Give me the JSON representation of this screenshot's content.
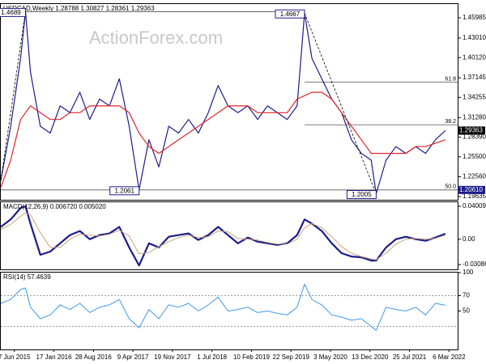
{
  "chart_data": [
    {
      "type": "line",
      "title": "USDCAD,Weekly  1.28788 1.30827 1.28361 1.29363",
      "watermark": "ActionForex.com",
      "x": [
        0,
        8,
        16,
        20,
        24,
        32,
        40,
        48,
        56,
        64,
        72,
        80,
        88,
        96,
        104,
        112,
        120,
        128,
        136,
        144,
        152,
        160,
        168,
        176,
        184,
        192,
        200,
        208,
        216,
        224,
        232,
        240,
        246,
        252,
        260,
        268,
        276,
        284,
        292,
        300,
        304,
        312,
        320,
        328,
        336,
        344,
        352,
        360
      ],
      "xlim": [
        0,
        370
      ],
      "ylim": [
        1.1916,
        1.4801
      ],
      "yticks": [
        1.19635,
        {
          "value": 1.2256,
          "label": "1.22560"
        },
        {
          "value": 1.255,
          "label": "1.25500"
        },
        {
          "value": 1.2839,
          "label": "1.28390"
        },
        {
          "value": 1.3128,
          "label": "1.31280"
        },
        1.34255,
        1.37145,
        {
          "value": 1.4012,
          "label": "1.40120"
        },
        {
          "value": 1.4301,
          "label": "1.43010"
        },
        1.45985
      ],
      "series": [
        {
          "name": "USDCAD",
          "color": "#1c1c8a",
          "values": [
            1.22,
            1.3,
            1.4,
            1.4689,
            1.38,
            1.3,
            1.29,
            1.33,
            1.32,
            1.35,
            1.31,
            1.34,
            1.33,
            1.37,
            1.3,
            1.2061,
            1.28,
            1.24,
            1.3,
            1.29,
            1.31,
            1.29,
            1.32,
            1.36,
            1.33,
            1.32,
            1.33,
            1.31,
            1.33,
            1.32,
            1.31,
            1.33,
            1.4667,
            1.4,
            1.37,
            1.34,
            1.32,
            1.28,
            1.26,
            1.25,
            1.2005,
            1.25,
            1.27,
            1.26,
            1.27,
            1.26,
            1.28,
            1.29363
          ]
        },
        {
          "name": "MA",
          "color": "#e0242a",
          "values": [
            1.21,
            1.25,
            1.31,
            1.32,
            1.33,
            1.32,
            1.31,
            1.31,
            1.32,
            1.32,
            1.33,
            1.33,
            1.33,
            1.33,
            1.32,
            1.29,
            1.27,
            1.26,
            1.27,
            1.28,
            1.29,
            1.3,
            1.31,
            1.32,
            1.33,
            1.33,
            1.33,
            1.32,
            1.32,
            1.32,
            1.32,
            1.34,
            1.345,
            1.35,
            1.35,
            1.34,
            1.32,
            1.3,
            1.28,
            1.26,
            1.26,
            1.26,
            1.26,
            1.26,
            1.27,
            1.27,
            1.275,
            1.28
          ]
        }
      ],
      "annotations": [
        {
          "label": "1.4689",
          "value": 1.4689,
          "x": 20
        },
        {
          "label": "1.4667",
          "value": 1.4667,
          "x": 246
        },
        {
          "label": "1.2061",
          "value": 1.2061,
          "x": 112
        },
        {
          "label": "1.2005",
          "value": 1.2005,
          "x": 304
        }
      ],
      "levels": [
        {
          "label": "61.8",
          "value": 1.3651,
          "x_start": 246
        },
        {
          "label": "38.2",
          "value": 1.3022,
          "x_start": 246
        },
        {
          "label": "50.0",
          "value": 1.2061,
          "x_start": 0
        }
      ],
      "last_price": 1.29363,
      "level_price": {
        "value": 1.2061,
        "label": "1.20610"
      }
    },
    {
      "type": "line",
      "title": "MACD(12,26,9) 0.006720 0.005020",
      "ylim": [
        -0.0367,
        0.045
      ],
      "yticks": [
        0.040094,
        {
          "value": 0,
          "label": "0.00"
        },
        -0.03086
      ],
      "series": [
        {
          "name": "MACD",
          "color": "#1c1c8a",
          "width": 2.2,
          "values": [
            0.015,
            0.024,
            0.038,
            0.04,
            0.019,
            -0.019,
            -0.015,
            -0.005,
            0.005,
            0.01,
            0,
            0.005,
            0.007,
            0.015,
            -0.01,
            -0.032,
            -0.005,
            -0.01,
            0.003,
            0.005,
            0.007,
            -0.001,
            0.005,
            0.015,
            0.005,
            -0.005,
            0.002,
            -0.003,
            -0.005,
            -0.007,
            -0.005,
            0.005,
            0.024,
            0.019,
            0.01,
            -0.005,
            -0.017,
            -0.021,
            -0.022,
            -0.026,
            -0.026,
            -0.01,
            0,
            0.003,
            0,
            -0.002,
            0.002,
            0.00672
          ]
        },
        {
          "name": "Signal",
          "color": "#c9a57a",
          "width": 1,
          "values": [
            0.012,
            0.018,
            0.028,
            0.032,
            0.03,
            0.008,
            -0.01,
            -0.01,
            0,
            0.006,
            0.005,
            0.004,
            0.006,
            0.011,
            0.004,
            -0.018,
            -0.016,
            -0.009,
            -0.003,
            0.002,
            0.005,
            0.002,
            0.003,
            0.01,
            0.009,
            0.001,
            0,
            -0.001,
            -0.004,
            -0.006,
            -0.006,
            0,
            0.014,
            0.019,
            0.014,
            0.003,
            -0.009,
            -0.017,
            -0.021,
            -0.024,
            -0.025,
            -0.017,
            -0.006,
            0,
            0.001,
            0,
            0.001,
            0.00502
          ]
        }
      ]
    },
    {
      "type": "line",
      "title": "RSI(14) 57.4639",
      "ylim": [
        0,
        100
      ],
      "yticks": [
        100,
        70,
        50
      ],
      "levels": [
        70,
        30
      ],
      "series": [
        {
          "name": "RSI",
          "color": "#3d9be9",
          "width": 1,
          "values": [
            60,
            65,
            78,
            80,
            55,
            40,
            45,
            58,
            52,
            60,
            48,
            55,
            58,
            65,
            40,
            28,
            52,
            40,
            58,
            55,
            60,
            50,
            58,
            68,
            50,
            52,
            55,
            48,
            50,
            47,
            45,
            55,
            85,
            65,
            58,
            45,
            42,
            38,
            40,
            30,
            25,
            55,
            52,
            50,
            55,
            45,
            60,
            57.4639
          ]
        }
      ],
      "xticks": [
        {
          "value": 11,
          "label": "7 Jun 2015"
        },
        {
          "value": 43,
          "label": "17 Jan 2016"
        },
        {
          "value": 75,
          "label": "28 Aug 2016"
        },
        {
          "value": 107,
          "label": "9 Apr 2017"
        },
        {
          "value": 139,
          "label": "19 Nov 2017"
        },
        {
          "value": 171,
          "label": "1 Jul 2018"
        },
        {
          "value": 203,
          "label": "10 Feb 2019"
        },
        {
          "value": 235,
          "label": "22 Sep 2019"
        },
        {
          "value": 267,
          "label": "3 May 2020"
        },
        {
          "value": 299,
          "label": "13 Dec 2020"
        },
        {
          "value": 331,
          "label": "25 Jul 2021"
        },
        {
          "value": 363,
          "label": "6 Mar 2022"
        }
      ]
    }
  ]
}
